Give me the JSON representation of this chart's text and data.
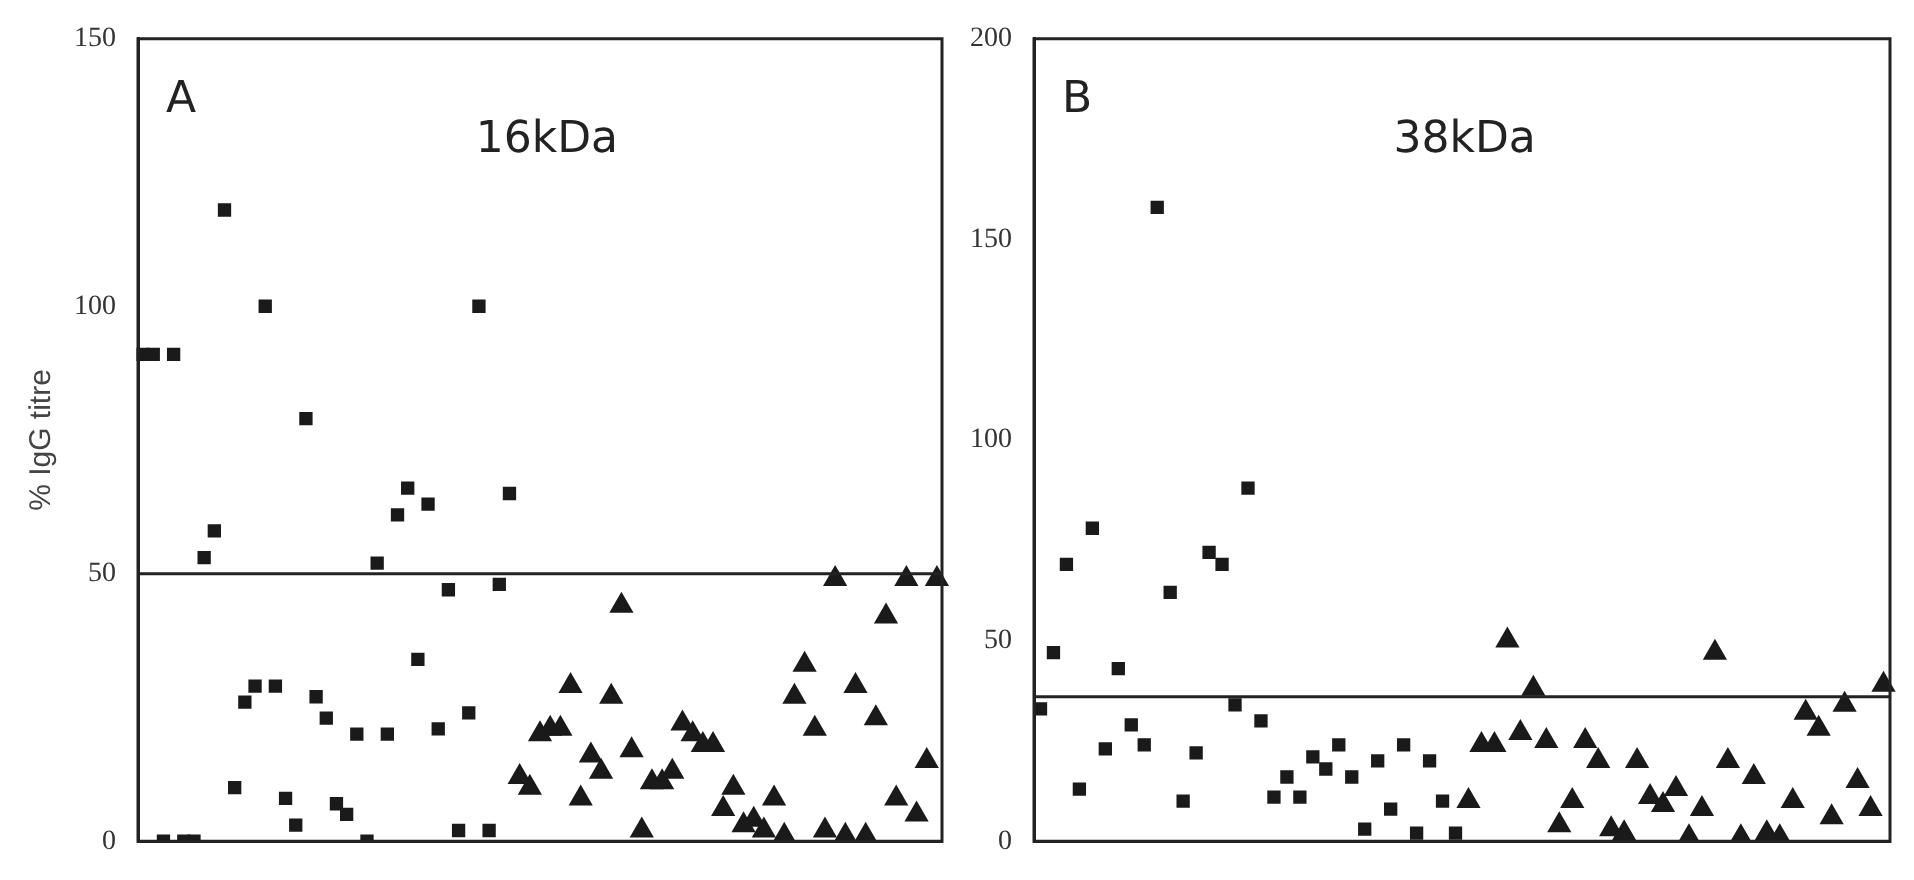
{
  "chart_data": [
    {
      "type": "scatter",
      "ylabel": "% IgG titre",
      "annotations": [
        "A",
        "16kDa"
      ],
      "tick_labels": "y",
      "grid": false,
      "legend": false,
      "categories": [
        null,
        null,
        null,
        null,
        null,
        null,
        null,
        null,
        null,
        null,
        null,
        null,
        null,
        null,
        null,
        null,
        null,
        null,
        null,
        null,
        null,
        null,
        null,
        null,
        null,
        null,
        null,
        null,
        null,
        null,
        null,
        null,
        null,
        null,
        null,
        null,
        null,
        null,
        null,
        null,
        null,
        null,
        null,
        null,
        null,
        null,
        null,
        null,
        null,
        null,
        null,
        null,
        null,
        null,
        null,
        null,
        null,
        null,
        null,
        null,
        null,
        null,
        null,
        null,
        null,
        null,
        null,
        null,
        null,
        null,
        null,
        null,
        null,
        null,
        null,
        null,
        null,
        null,
        null
      ],
      "ylim": [
        0,
        150
      ],
      "yticks": [
        0,
        50,
        100,
        150
      ],
      "ref_lines": [
        {
          "axis": "y",
          "value": 50
        }
      ],
      "series": [
        {
          "marker": "square",
          "color": "#1a1a1a",
          "values": [
            91,
            91,
            0,
            91,
            0,
            0,
            53,
            58,
            118,
            10,
            26,
            29,
            100,
            29,
            8,
            3,
            79,
            27,
            23,
            7,
            5,
            20,
            0,
            52,
            20,
            61,
            66,
            34,
            63,
            21,
            47,
            2,
            24,
            100,
            2,
            48,
            65,
            null,
            null,
            null,
            null,
            null,
            null,
            null,
            null,
            null,
            null,
            null,
            null,
            null,
            null,
            null,
            null,
            null,
            null,
            null,
            null,
            null,
            null,
            null,
            null,
            null,
            null,
            null,
            null,
            null,
            null,
            null,
            null,
            null,
            null,
            null,
            null,
            null,
            null,
            null,
            null,
            null,
            null
          ]
        },
        {
          "marker": "triangle",
          "color": "#1a1a1a",
          "values": [
            null,
            null,
            null,
            null,
            null,
            null,
            null,
            null,
            null,
            null,
            null,
            null,
            null,
            null,
            null,
            null,
            null,
            null,
            null,
            null,
            null,
            null,
            null,
            null,
            null,
            null,
            null,
            null,
            null,
            null,
            null,
            null,
            null,
            null,
            null,
            null,
            null,
            12,
            10,
            20,
            21,
            21,
            29,
            8,
            16,
            13,
            27,
            44,
            17,
            2,
            11,
            11,
            13,
            22,
            20,
            18,
            18,
            6,
            10,
            3,
            4,
            2,
            8,
            1,
            27,
            33,
            21,
            2,
            49,
            1,
            29,
            1,
            23,
            42,
            8,
            49,
            5,
            15,
            49
          ]
        }
      ]
    },
    {
      "type": "scatter",
      "annotations": [
        "B",
        "38kDa"
      ],
      "tick_labels": "y",
      "grid": false,
      "legend": false,
      "categories": [
        null,
        null,
        null,
        null,
        null,
        null,
        null,
        null,
        null,
        null,
        null,
        null,
        null,
        null,
        null,
        null,
        null,
        null,
        null,
        null,
        null,
        null,
        null,
        null,
        null,
        null,
        null,
        null,
        null,
        null,
        null,
        null,
        null,
        null,
        null,
        null,
        null,
        null,
        null,
        null,
        null,
        null,
        null,
        null,
        null,
        null,
        null,
        null,
        null,
        null,
        null,
        null,
        null,
        null,
        null,
        null,
        null,
        null,
        null,
        null,
        null,
        null,
        null,
        null,
        null,
        null
      ],
      "ylim": [
        0,
        200
      ],
      "yticks": [
        0,
        50,
        100,
        150,
        200
      ],
      "ref_lines": [
        {
          "axis": "y",
          "value": 36
        }
      ],
      "series": [
        {
          "marker": "square",
          "color": "#1a1a1a",
          "values": [
            33,
            47,
            69,
            13,
            78,
            23,
            43,
            29,
            24,
            158,
            62,
            10,
            22,
            72,
            69,
            34,
            88,
            30,
            11,
            16,
            11,
            21,
            18,
            24,
            16,
            3,
            20,
            8,
            24,
            2,
            20,
            10,
            2,
            null,
            null,
            null,
            null,
            null,
            null,
            null,
            null,
            null,
            null,
            null,
            null,
            null,
            null,
            null,
            null,
            null,
            null,
            null,
            null,
            null,
            null,
            null,
            null,
            null,
            null,
            null,
            null,
            null,
            null,
            null,
            null,
            null
          ]
        },
        {
          "marker": "triangle",
          "color": "#1a1a1a",
          "values": [
            null,
            null,
            null,
            null,
            null,
            null,
            null,
            null,
            null,
            null,
            null,
            null,
            null,
            null,
            null,
            null,
            null,
            null,
            null,
            null,
            null,
            null,
            null,
            null,
            null,
            null,
            null,
            null,
            null,
            null,
            null,
            null,
            null,
            10,
            24,
            24,
            50,
            27,
            38,
            25,
            4,
            10,
            25,
            20,
            3,
            2,
            20,
            11,
            9,
            13,
            1,
            8,
            47,
            20,
            1,
            16,
            2,
            1,
            10,
            32,
            28,
            6,
            34,
            15,
            8,
            39
          ]
        }
      ]
    }
  ]
}
